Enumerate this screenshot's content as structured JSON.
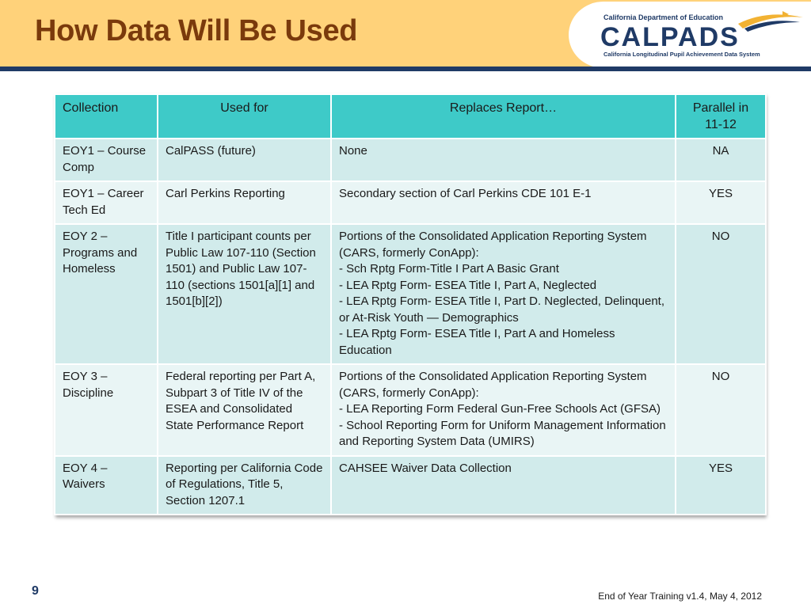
{
  "slide": {
    "title": "How Data Will Be Used",
    "page_number": "9",
    "footer": "End of Year Training v1.4, May 4, 2012"
  },
  "logo": {
    "department": "California Department of Education",
    "wordmark": "CALPADS",
    "subtitle": "California Longitudinal Pupil Achievement Data System",
    "icon": "swoosh-logo-icon"
  },
  "colors": {
    "header_bg": "#ffd27a",
    "title": "#7a3a0c",
    "band": "#1f3a66",
    "table_header": "#3ecac8",
    "row_odd": "#d1ebeb",
    "row_even": "#e9f5f5"
  },
  "table": {
    "headers": [
      "Collection",
      "Used for",
      "Replaces Report…",
      "Parallel in 11-12"
    ],
    "rows": [
      {
        "collection": "EOY1 – Course Comp",
        "used_for": "CalPASS (future)",
        "replaces": [
          "None"
        ],
        "parallel": "NA"
      },
      {
        "collection": "EOY1 – Career Tech Ed",
        "used_for": "Carl Perkins Reporting",
        "replaces": [
          "Secondary section  of Carl Perkins  CDE 101 E-1"
        ],
        "parallel": "YES"
      },
      {
        "collection": "EOY 2 – Programs and Homeless",
        "used_for": "Title I participant counts per Public Law 107-110 (Section 1501) and Public Law 107-110 (sections 1501[a][1] and 1501[b][2])",
        "replaces": [
          "Portions of the Consolidated Application Reporting System (CARS, formerly ConApp):",
          "- Sch Rptg Form-Title I Part A Basic Grant",
          "- LEA Rptg Form- ESEA Title I, Part A, Neglected",
          "- LEA Rptg Form- ESEA Title I, Part D. Neglected, Delinquent, or  At-Risk Youth — Demographics",
          "- LEA Rptg Form- ESEA Title I, Part A and Homeless Education"
        ],
        "parallel": "NO"
      },
      {
        "collection": "EOY 3 – Discipline",
        "used_for": "Federal reporting per Part A, Subpart 3 of Title IV of the ESEA and Consolidated State Performance Report",
        "replaces": [
          "Portions of the Consolidated Application Reporting System (CARS, formerly ConApp):",
          "- LEA Reporting Form Federal Gun-Free Schools Act (GFSA)",
          "- School Reporting Form for Uniform Management Information and Reporting System Data (UMIRS)"
        ],
        "parallel": "NO"
      },
      {
        "collection": "EOY 4 – Waivers",
        "used_for": "Reporting per California Code of Regulations, Title 5, Section 1207.1",
        "replaces": [
          "CAHSEE Waiver Data Collection"
        ],
        "parallel": "YES"
      }
    ]
  }
}
